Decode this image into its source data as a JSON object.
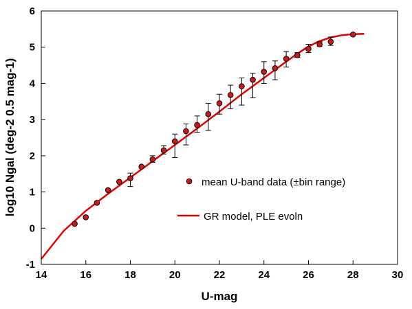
{
  "chart_data": {
    "type": "scatter",
    "xlabel": "U-mag",
    "ylabel": "log10 Ngal (deg-2 0.5 mag-1)",
    "xlim": [
      14,
      30
    ],
    "ylim": [
      -1,
      6
    ],
    "xticks": [
      14,
      16,
      18,
      20,
      22,
      24,
      26,
      28,
      30
    ],
    "yticks": [
      -1,
      0,
      1,
      2,
      3,
      4,
      5,
      6
    ],
    "xtick_labels": [
      "14",
      "16",
      "18",
      "20",
      "22",
      "24",
      "26",
      "28",
      "30"
    ],
    "ytick_labels": [
      "-1",
      "0",
      "1",
      "2",
      "3",
      "4",
      "5",
      "6"
    ],
    "grid": false,
    "legend_placement": "lower-right-inside",
    "colors": {
      "data": "#d11818",
      "model": "#e00000",
      "errorbar": "#000000"
    },
    "series": [
      {
        "name": "mean U-band data (±bin range)",
        "kind": "scatter-errorbar",
        "x": [
          15.5,
          16,
          16.5,
          17,
          17.5,
          18,
          18.5,
          19,
          19.5,
          20,
          20.5,
          21,
          21.5,
          22,
          22.5,
          23,
          23.5,
          24,
          24.5,
          25,
          25.5,
          26,
          26.5,
          27,
          28
        ],
        "y": [
          0.12,
          0.3,
          0.7,
          1.05,
          1.28,
          1.38,
          1.7,
          1.9,
          2.15,
          2.4,
          2.68,
          2.85,
          3.15,
          3.45,
          3.68,
          3.92,
          4.1,
          4.32,
          4.42,
          4.68,
          4.78,
          4.95,
          5.08,
          5.15,
          5.35
        ],
        "y_low": [
          0.12,
          0.3,
          0.7,
          1.05,
          1.28,
          1.15,
          1.7,
          1.82,
          2.05,
          1.95,
          2.3,
          2.65,
          2.7,
          3.15,
          3.3,
          3.4,
          3.6,
          4.0,
          4.1,
          4.45,
          4.72,
          4.85,
          5.02,
          5.05,
          5.35
        ],
        "y_high": [
          0.12,
          0.3,
          0.7,
          1.05,
          1.28,
          1.52,
          1.7,
          2.0,
          2.28,
          2.6,
          2.88,
          3.1,
          3.45,
          3.7,
          3.95,
          4.15,
          4.28,
          4.6,
          4.62,
          4.88,
          4.85,
          5.08,
          5.15,
          5.28,
          5.35
        ]
      },
      {
        "name": "GR model, PLE evoln",
        "kind": "line",
        "x": [
          14,
          15,
          16,
          17,
          18,
          19,
          20,
          21,
          22,
          23,
          24,
          25,
          25.5,
          26,
          26.5,
          27,
          27.5,
          28,
          28.5
        ],
        "y": [
          -0.85,
          -0.08,
          0.48,
          0.95,
          1.4,
          1.85,
          2.3,
          2.75,
          3.22,
          3.7,
          4.15,
          4.6,
          4.82,
          5.02,
          5.17,
          5.27,
          5.33,
          5.36,
          5.37
        ]
      }
    ]
  }
}
